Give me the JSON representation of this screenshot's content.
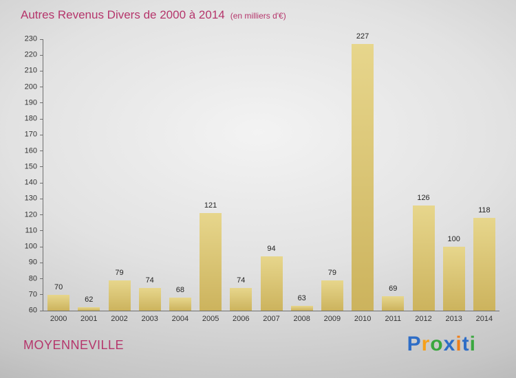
{
  "title": {
    "main": "Autres Revenus Divers de 2000 à 2014",
    "sub": "(en milliers d'€)"
  },
  "footer": {
    "place": "MOYENNEVILLE",
    "logo": [
      {
        "ch": "P",
        "color": "#2e6dc6"
      },
      {
        "ch": "r",
        "color": "#f6a01b"
      },
      {
        "ch": "o",
        "color": "#3aa73f"
      },
      {
        "ch": "x",
        "color": "#2e6dc6"
      },
      {
        "ch": "i",
        "color": "#ef7f1a"
      },
      {
        "ch": "t",
        "color": "#2e6dc6"
      },
      {
        "ch": "i",
        "color": "#3aa73f"
      }
    ]
  },
  "colors": {
    "title": "#b5356b",
    "place": "#b5356b",
    "axis": "#6e6e6e",
    "bar_top": "#e7d68c",
    "bar_bottom": "#ccb35d",
    "tick_text": "#333333"
  },
  "chart_data": {
    "type": "bar",
    "title": "Autres Revenus Divers de 2000 à 2014",
    "subtitle": "(en milliers d'€)",
    "categories": [
      "2000",
      "2001",
      "2002",
      "2003",
      "2004",
      "2005",
      "2006",
      "2007",
      "2008",
      "2009",
      "2010",
      "2011",
      "2012",
      "2013",
      "2014"
    ],
    "values": [
      70,
      62,
      79,
      74,
      68,
      121,
      74,
      94,
      63,
      79,
      227,
      69,
      126,
      100,
      118
    ],
    "xlabel": "",
    "ylabel": "",
    "ylim": [
      60,
      230
    ],
    "ytick_step": 10,
    "grid": false,
    "legend": "none"
  }
}
